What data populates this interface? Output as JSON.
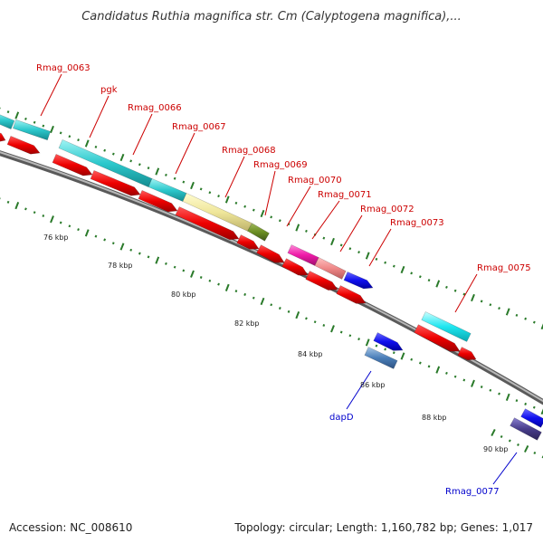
{
  "title": "Candidatus Ruthia magnifica str. Cm (Calyptogena magnifica),...",
  "footer": {
    "accession": "Accession: NC_008610",
    "summary": "Topology: circular; Length: 1,160,782 bp; Genes: 1,017"
  },
  "colors": {
    "forward_label": "#cc0000",
    "reverse_label": "#0000cc",
    "backbone": "#8c8c8c",
    "tick": "#2a7a2a",
    "cds": "#ee0000"
  },
  "scale_labels": [
    "76 kbp",
    "78 kbp",
    "80 kbp",
    "82 kbp",
    "84 kbp",
    "86 kbp",
    "88 kbp",
    "90 kbp"
  ],
  "gene_labels_forward": [
    "Rmag_0063",
    "pgk",
    "Rmag_0066",
    "Rmag_0067",
    "Rmag_0068",
    "Rmag_0069",
    "Rmag_0070",
    "Rmag_0071",
    "Rmag_0072",
    "Rmag_0073",
    "Rmag_0075"
  ],
  "gene_labels_reverse": [
    "dapD",
    "Rmag_0077"
  ]
}
